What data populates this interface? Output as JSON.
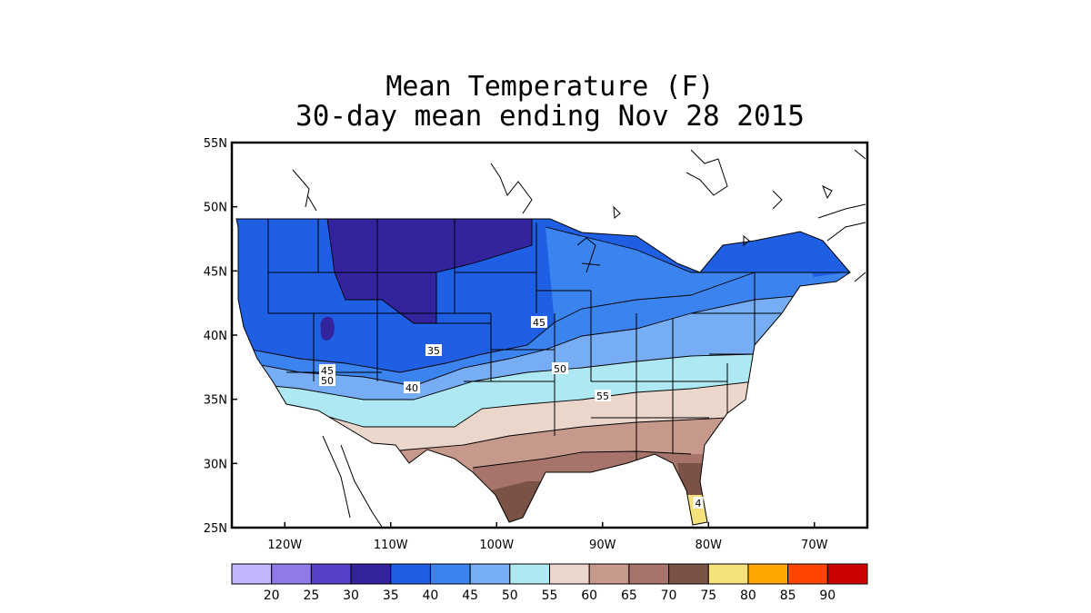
{
  "title": "Mean Temperature (F)",
  "subtitle": "30-day mean ending Nov 28 2015",
  "map": {
    "lat_range": [
      25,
      55
    ],
    "lon_range": [
      -125,
      -65
    ],
    "lat_ticks": [
      "55N",
      "50N",
      "45N",
      "40N",
      "35N",
      "30N",
      "25N"
    ],
    "lon_ticks": [
      "120W",
      "110W",
      "100W",
      "90W",
      "80W",
      "70W"
    ],
    "contour_labels": [
      "35",
      "40",
      "45",
      "45",
      "50",
      "50",
      "55",
      "4"
    ]
  },
  "legend": {
    "colors": [
      "#c4b5ff",
      "#8f7ae8",
      "#5540c8",
      "#33249e",
      "#1e5fe3",
      "#3b84f0",
      "#77adf5",
      "#aee8f2",
      "#ebd6cc",
      "#c7998c",
      "#a6746a",
      "#7a5246",
      "#f5e27a",
      "#ffa500",
      "#ff4500",
      "#cc0000"
    ],
    "labels": [
      "20",
      "25",
      "30",
      "35",
      "40",
      "45",
      "50",
      "55",
      "60",
      "65",
      "70",
      "75",
      "80",
      "85",
      "90"
    ]
  }
}
